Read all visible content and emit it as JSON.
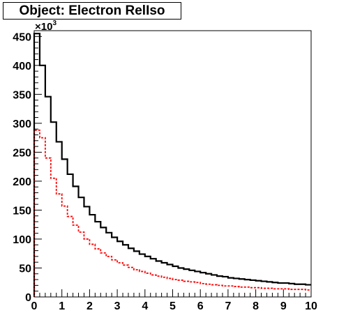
{
  "title": "Object: Electron RelIso",
  "chart_data": {
    "type": "line",
    "drawstyle": "steps",
    "title": "Object: Electron RelIso",
    "xlabel": "",
    "ylabel": "",
    "xlim": [
      0,
      10
    ],
    "ylim": [
      0,
      460
    ],
    "y_exponent_label": "×10",
    "y_exponent_power": "3",
    "x_ticks": [
      0,
      1,
      2,
      3,
      4,
      5,
      6,
      7,
      8,
      9,
      10
    ],
    "x_tick_labels": [
      "0",
      "1",
      "2",
      "3",
      "4",
      "5",
      "6",
      "7",
      "8",
      "9",
      "10"
    ],
    "y_ticks": [
      0,
      50,
      100,
      150,
      200,
      250,
      300,
      350,
      400,
      450
    ],
    "y_tick_labels": [
      "0",
      "50",
      "100",
      "150",
      "200",
      "250",
      "300",
      "350",
      "400",
      "450"
    ],
    "grid": false,
    "bin_edges": [
      0,
      0.2,
      0.4,
      0.6,
      0.8,
      1.0,
      1.2,
      1.4,
      1.6,
      1.8,
      2.0,
      2.2,
      2.4,
      2.6,
      2.8,
      3.0,
      3.2,
      3.4,
      3.6,
      3.8,
      4.0,
      4.2,
      4.4,
      4.6,
      4.8,
      5.0,
      5.2,
      5.4,
      5.6,
      5.8,
      6.0,
      6.2,
      6.4,
      6.6,
      6.8,
      7.0,
      7.2,
      7.4,
      7.6,
      7.8,
      8.0,
      8.2,
      8.4,
      8.6,
      8.8,
      9.0,
      9.2,
      9.4,
      9.6,
      9.8,
      10.0
    ],
    "series": [
      {
        "color": "#000000",
        "style": "solid",
        "values": [
          455,
          400,
          346,
          302,
          268,
          238,
          212,
          191,
          172,
          156,
          142,
          130,
          120,
          111,
          103,
          96,
          90,
          84,
          79,
          74,
          70,
          66,
          62,
          59,
          56,
          53,
          50,
          48,
          46,
          44,
          42,
          40,
          38,
          36,
          35,
          33,
          32,
          31,
          30,
          29,
          28,
          27,
          26,
          25,
          24,
          24,
          23,
          22,
          22,
          21
        ]
      },
      {
        "color": "#ff0000",
        "style": "dashed",
        "values": [
          288,
          275,
          240,
          205,
          178,
          157,
          139,
          124,
          112,
          100,
          91,
          83,
          76,
          70,
          64,
          59,
          55,
          51,
          47,
          44,
          41,
          38,
          36,
          34,
          32,
          30,
          29,
          27,
          26,
          25,
          23,
          22,
          21,
          20,
          19,
          19,
          18,
          17,
          17,
          16,
          16,
          15,
          15,
          14,
          14,
          14,
          13,
          13,
          13,
          12
        ]
      }
    ]
  }
}
